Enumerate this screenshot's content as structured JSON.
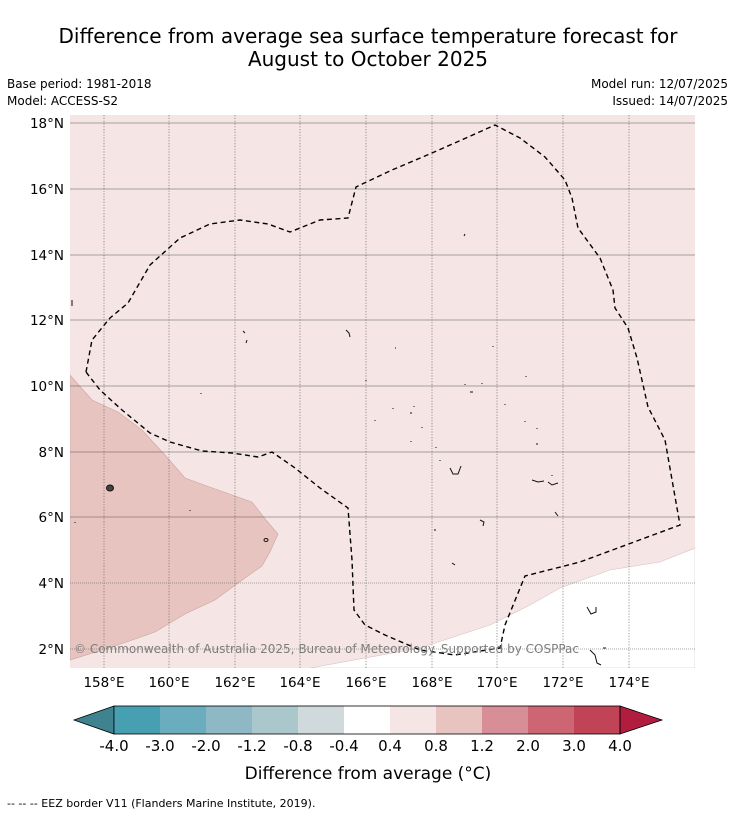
{
  "title": {
    "line1": "Difference from average sea surface temperature forecast for",
    "line2": "August to October 2025"
  },
  "meta": {
    "base_period": "Base period: 1981-2018",
    "model": "Model: ACCESS-S2",
    "model_run": "Model run: 12/07/2025",
    "issued": "Issued: 14/07/2025"
  },
  "map": {
    "lat_labels": [
      "18°N",
      "16°N",
      "14°N",
      "12°N",
      "10°N",
      "8°N",
      "6°N",
      "4°N",
      "2°N"
    ],
    "lon_labels": [
      "158°E",
      "160°E",
      "162°E",
      "164°E",
      "166°E",
      "168°E",
      "170°E",
      "172°E",
      "174°E"
    ],
    "lat_range": [
      1.4,
      18.3
    ],
    "lon_range": [
      157.0,
      176.0
    ],
    "copyright": "© Commonwealth of Australia 2025, Bureau of Meteorology. Supported by COSPPac",
    "eez_border_style": "dashed black",
    "dominant_anomaly_class": "0.4 to 0.8",
    "western_anomaly_class": "0.8 to 1.2",
    "southeast_anomaly_class": "-0.4 to 0.4"
  },
  "colorbar": {
    "title": "Difference from average (°C)",
    "tick_labels": [
      "-4.0",
      "-3.0",
      "-2.0",
      "-1.2",
      "-0.8",
      "-0.4",
      "0.4",
      "0.8",
      "1.2",
      "2.0",
      "3.0",
      "4.0"
    ],
    "colors": [
      "#3f8390",
      "#47a0b2",
      "#6aadbe",
      "#8db8c4",
      "#aac8cc",
      "#d0d9dc",
      "#ffffff",
      "#f5e6e5",
      "#e8c4c1",
      "#d88e96",
      "#cd6672",
      "#c04456",
      "#b01d3f"
    ]
  },
  "footnote": "--  --  -- EEZ border V11 (Flanders Marine Institute, 2019)."
}
